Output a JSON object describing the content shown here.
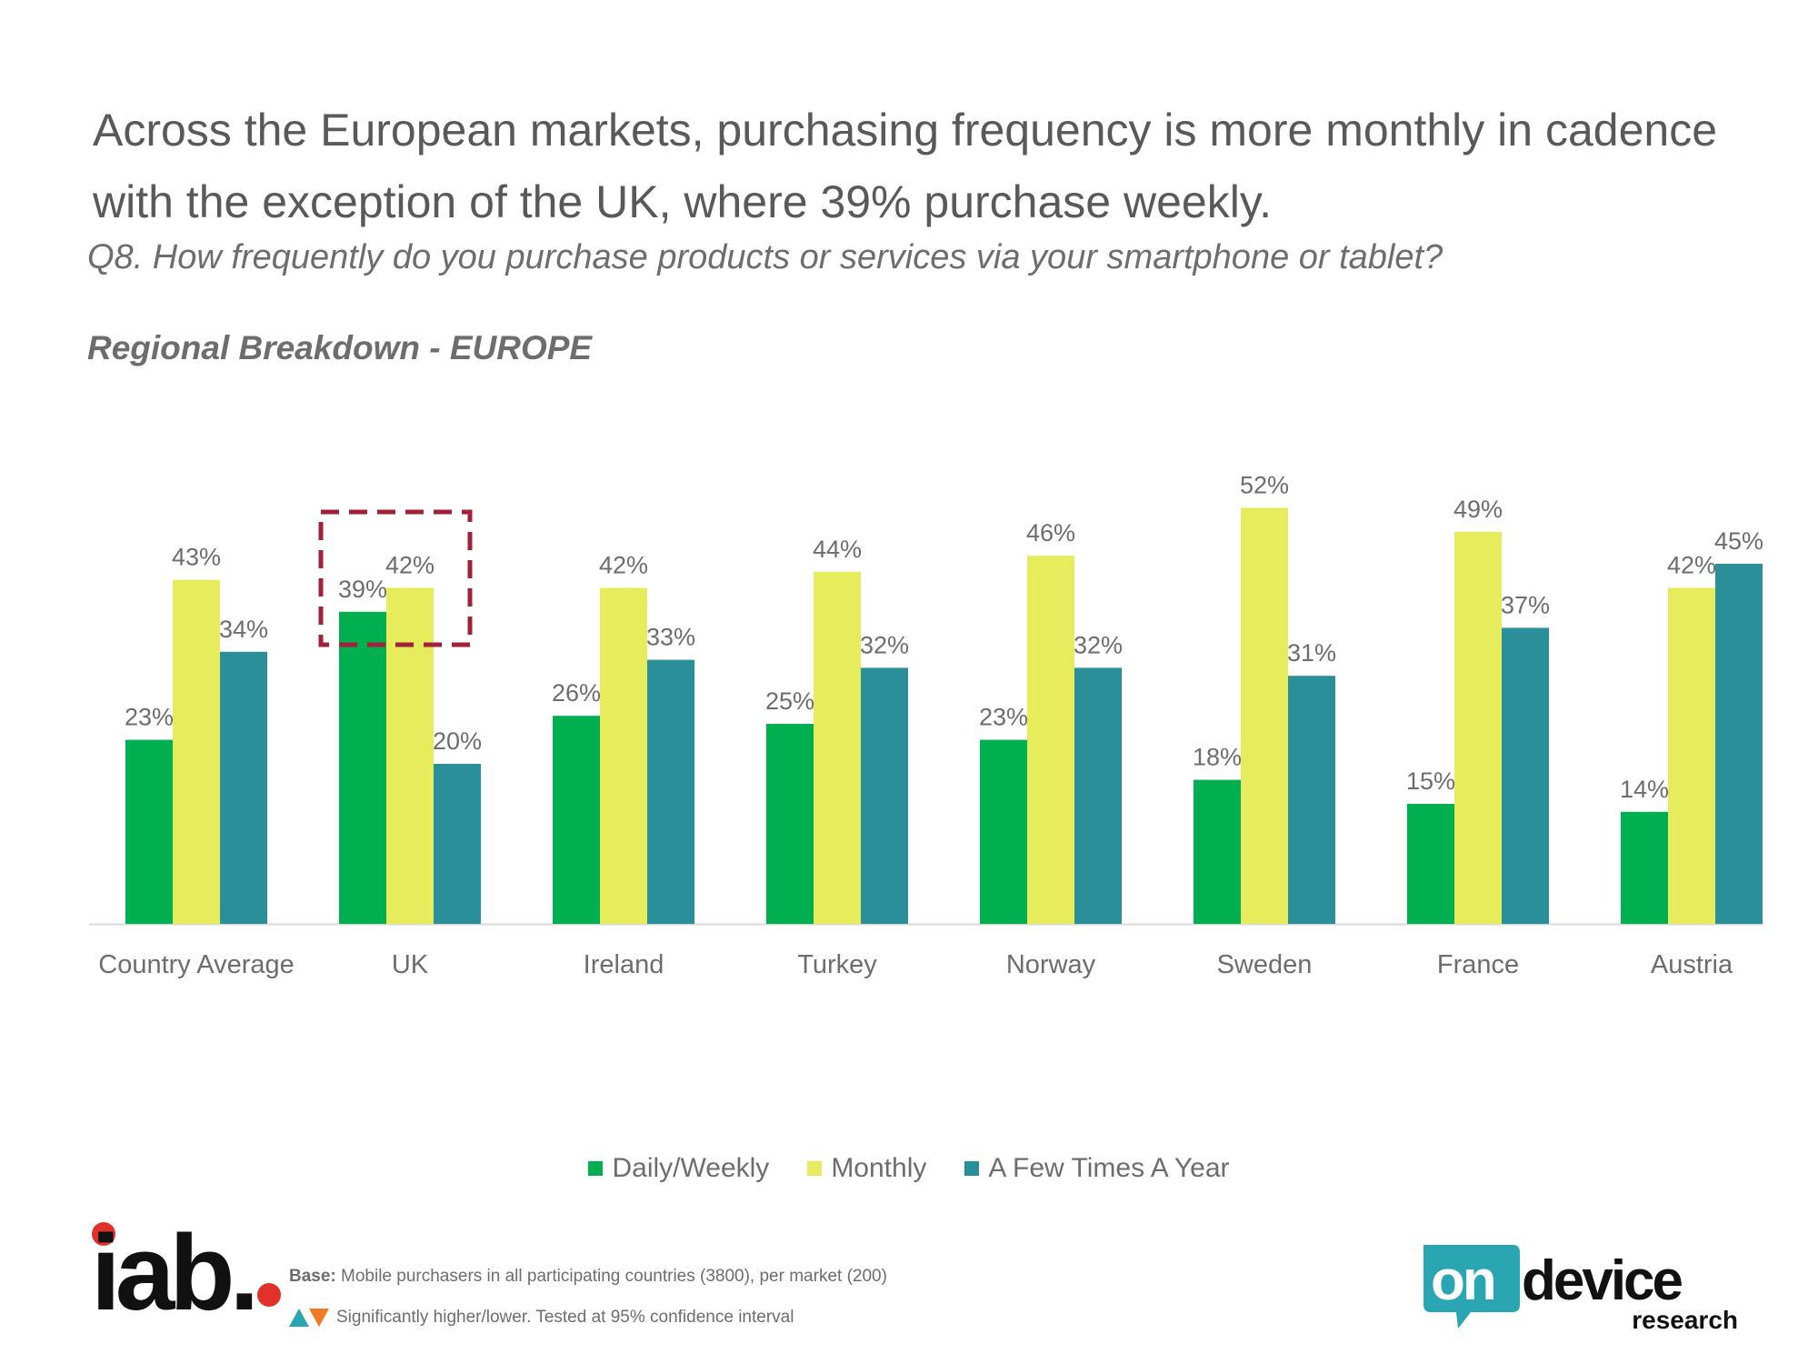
{
  "headline": "Across the European markets, purchasing frequency is more monthly in cadence with the exception of the UK, where 39% purchase weekly.",
  "question": "Q8. How frequently do you purchase products or services via your smartphone or tablet?",
  "subtitle": "Regional Breakdown - EUROPE",
  "colors": {
    "daily": "#00b050",
    "monthly": "#e6ec5c",
    "few": "#2a8f99",
    "highlight": "#a3203a",
    "text": "#6d6d6d"
  },
  "chart_data": {
    "type": "bar",
    "categories": [
      "Country Average",
      "UK",
      "Ireland",
      "Turkey",
      "Norway",
      "Sweden",
      "France",
      "Austria"
    ],
    "series": [
      {
        "name": "Daily/Weekly",
        "values": [
          23,
          39,
          26,
          25,
          23,
          18,
          15,
          14
        ],
        "labels": [
          "23%",
          "39%",
          "26%",
          "25%",
          "23%",
          "18%",
          "15%",
          "14%"
        ]
      },
      {
        "name": "Monthly",
        "values": [
          43,
          42,
          42,
          44,
          46,
          52,
          49,
          42
        ],
        "labels": [
          "43%",
          "42%",
          "42%",
          "44%",
          "46%",
          "52%",
          "49%",
          "42%"
        ]
      },
      {
        "name": "A Few Times A Year",
        "values": [
          34,
          20,
          33,
          32,
          32,
          31,
          37,
          45
        ],
        "labels": [
          "34%",
          "20%",
          "33%",
          "32%",
          "32%",
          "31%",
          "37%",
          "45%"
        ]
      }
    ],
    "ylim": [
      0,
      60
    ],
    "highlight_category": "UK",
    "highlight_series": "Daily/Weekly",
    "legend_position": "bottom"
  },
  "legend": {
    "daily": "Daily/Weekly",
    "monthly": "Monthly",
    "few": "A Few Times A Year"
  },
  "footer": {
    "base_bold": "Base:",
    "base_text": "Mobile purchasers in all participating countries (3800), per market (200)",
    "significance": "Significantly higher/lower. Tested at 95% confidence interval"
  },
  "logos": {
    "left": "iab.",
    "right_top_a": "on",
    "right_top_b": "device",
    "right_bottom": "research"
  }
}
